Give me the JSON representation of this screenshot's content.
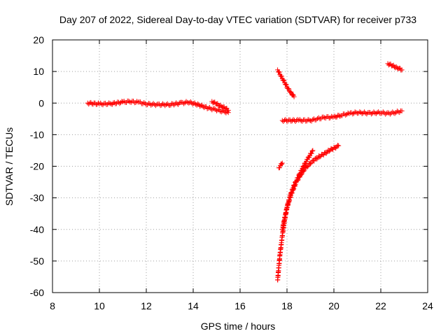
{
  "chart_data": {
    "type": "scatter",
    "title": "Day 207 of 2022, Sidereal Day-to-day VTEC variation (SDTVAR) for receiver p733",
    "xlabel": "GPS time / hours",
    "ylabel": "SDTVAR / TECUs",
    "xlim": [
      8,
      24
    ],
    "ylim": [
      -60,
      20
    ],
    "xticks": [
      8,
      10,
      12,
      14,
      16,
      18,
      20,
      22,
      24
    ],
    "yticks": [
      -60,
      -50,
      -40,
      -30,
      -20,
      -10,
      0,
      10,
      20
    ],
    "grid": true,
    "marker": "+",
    "color": "#ff0000",
    "series": [
      {
        "x": [
          9.5,
          10.0,
          10.5,
          11.0,
          11.3,
          11.7,
          12.0,
          12.5,
          13.0,
          13.5,
          13.8,
          14.2,
          14.6,
          14.9,
          15.2,
          15.5
        ],
        "y": [
          0,
          -0.3,
          -0.2,
          0.3,
          0.5,
          0.2,
          -0.3,
          -0.5,
          -0.5,
          0,
          0.3,
          -0.5,
          -1.5,
          -2,
          -2.5,
          -3.0
        ]
      },
      {
        "x": [
          14.8,
          15.0,
          15.2,
          15.4,
          15.5
        ],
        "y": [
          0.5,
          -0.3,
          -1.0,
          -1.8,
          -2.3
        ]
      },
      {
        "x": [
          17.6,
          17.75,
          17.9,
          18.05,
          18.2,
          18.3
        ],
        "y": [
          10.5,
          8.5,
          6.5,
          4.5,
          3.0,
          2.0
        ]
      },
      {
        "x": [
          17.65,
          17.72,
          17.8
        ],
        "y": [
          -20.5,
          -19.8,
          -19.0
        ]
      },
      {
        "x": [
          17.8,
          18.5,
          19.0,
          19.3,
          19.6,
          20.0,
          20.3,
          20.7,
          21.0,
          21.5,
          22.0,
          22.3,
          22.6,
          22.9
        ],
        "y": [
          -5.5,
          -5.5,
          -5.5,
          -5.0,
          -4.5,
          -4.5,
          -3.8,
          -3.3,
          -3.0,
          -3.2,
          -3.0,
          -3.3,
          -3.0,
          -2.5
        ]
      },
      {
        "x": [
          22.3,
          22.5,
          22.7,
          22.9
        ],
        "y": [
          12.5,
          11.8,
          11.2,
          10.5
        ]
      },
      {
        "x": [
          17.6,
          17.7,
          17.8,
          17.9,
          18.0,
          18.15,
          18.3,
          18.5,
          18.7,
          18.9,
          19.1
        ],
        "y": [
          -56,
          -48,
          -42,
          -37,
          -33,
          -29,
          -26,
          -23,
          -20,
          -17.5,
          -15
        ]
      },
      {
        "x": [
          17.8,
          18.0,
          18.2,
          18.4,
          18.6,
          18.8,
          19.0,
          19.2,
          19.4,
          19.6,
          19.8,
          20.0,
          20.2
        ],
        "y": [
          -40,
          -33,
          -28.5,
          -25,
          -22.5,
          -20.5,
          -19,
          -17.8,
          -16.8,
          -16,
          -15,
          -14.3,
          -13.5
        ]
      }
    ]
  }
}
